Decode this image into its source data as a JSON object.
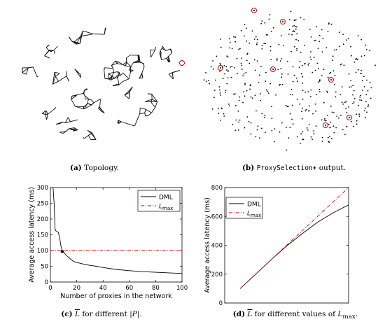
{
  "captions": {
    "a": {
      "label": "(a)",
      "text": "Topology."
    },
    "b": {
      "label": "(b)",
      "code": "ProxySelection+",
      "text": "output."
    },
    "c": {
      "label": "(c)",
      "sym": "L",
      "text": "for different",
      "rest": "|P|."
    },
    "d": {
      "label": "(d)",
      "sym": "L",
      "text": "for different values of",
      "rest": "L",
      "sub": "max",
      "end": "."
    }
  },
  "colors": {
    "dml": "#000000",
    "lmax": "#d40000",
    "proxy": "#d40000"
  },
  "chart_data": [
    {
      "type": "line",
      "panel": "c",
      "xlabel": "Number of proxies in the network",
      "ylabel": "Average access latency (ms)",
      "xlim": [
        0,
        100
      ],
      "ylim": [
        0,
        300
      ],
      "xticks": [
        "0",
        "20",
        "40",
        "60",
        "80",
        "100"
      ],
      "yticks": [
        "0",
        "50",
        "100",
        "150",
        "200",
        "250",
        "300"
      ],
      "legend_position": "top-right",
      "series": [
        {
          "name": "DML",
          "style": "solid",
          "x": [
            1,
            2,
            3,
            3.5,
            4,
            5,
            6,
            7,
            8,
            9,
            10,
            12,
            14,
            16,
            18,
            20,
            25,
            30,
            35,
            40,
            50,
            60,
            70,
            80,
            90,
            100
          ],
          "y": [
            300,
            300,
            240,
            170,
            163,
            160,
            158,
            140,
            115,
            100,
            95,
            85,
            78,
            70,
            65,
            62,
            57,
            53,
            50,
            46,
            40,
            36,
            33,
            31,
            29,
            27
          ]
        },
        {
          "name": "L",
          "sub": "max",
          "style": "dashdot",
          "x": [
            0,
            100
          ],
          "y": [
            100,
            100
          ]
        }
      ],
      "marker": {
        "x": 9,
        "y": 97
      }
    },
    {
      "type": "line",
      "panel": "d",
      "ylabel": "Average access latency (ms)",
      "xlim": [
        0,
        800
      ],
      "ylim": [
        0,
        800
      ],
      "yticks": [
        "0",
        "200",
        "400",
        "600",
        "800"
      ],
      "legend_position": "top-left",
      "series": [
        {
          "name": "DML",
          "style": "solid",
          "x": [
            100,
            200,
            300,
            400,
            500,
            600,
            700,
            800
          ],
          "y": [
            100,
            200,
            300,
            395,
            480,
            560,
            625,
            680
          ]
        },
        {
          "name": "L",
          "sub": "max",
          "style": "dashdot",
          "x": [
            100,
            800
          ],
          "y": [
            100,
            800
          ]
        }
      ]
    }
  ]
}
